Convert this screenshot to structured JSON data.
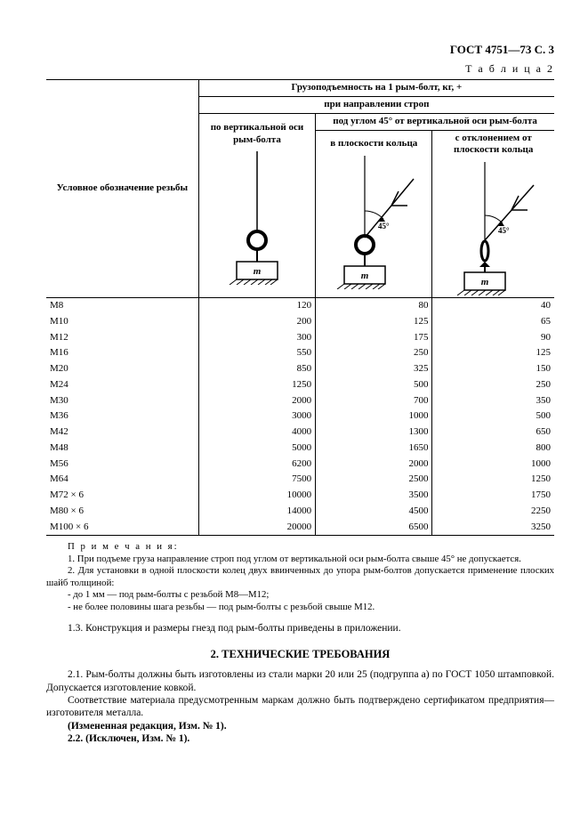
{
  "header": {
    "doc_id": "ГОСТ 4751—73 С. 3"
  },
  "table": {
    "caption": "Т а б л и ц а  2",
    "head": {
      "main": "Грузоподъемность на 1 рым-болт, кг, +",
      "sub": "при направлении строп",
      "col_thread": "Условное обозначение резьбы",
      "col_vert": "по вертикальной оси рым-болта",
      "angle_group": "под углом 45° от вертикальной оси рым-болта",
      "col_inplane": "в плоскости кольца",
      "col_offplane": "с отклонением от плоскости кольца"
    },
    "rows": [
      {
        "t": "М8",
        "v1": "120",
        "v2": "80",
        "v3": "40"
      },
      {
        "t": "М10",
        "v1": "200",
        "v2": "125",
        "v3": "65"
      },
      {
        "t": "М12",
        "v1": "300",
        "v2": "175",
        "v3": "90"
      },
      {
        "t": "М16",
        "v1": "550",
        "v2": "250",
        "v3": "125"
      },
      {
        "t": "М20",
        "v1": "850",
        "v2": "325",
        "v3": "150"
      },
      {
        "t": "М24",
        "v1": "1250",
        "v2": "500",
        "v3": "250"
      },
      {
        "t": "М30",
        "v1": "2000",
        "v2": "700",
        "v3": "350"
      },
      {
        "t": "М36",
        "v1": "3000",
        "v2": "1000",
        "v3": "500"
      },
      {
        "t": "М42",
        "v1": "4000",
        "v2": "1300",
        "v3": "650"
      },
      {
        "t": "М48",
        "v1": "5000",
        "v2": "1650",
        "v3": "800"
      },
      {
        "t": "М56",
        "v1": "6200",
        "v2": "2000",
        "v3": "1000"
      },
      {
        "t": "М64",
        "v1": "7500",
        "v2": "2500",
        "v3": "1250"
      },
      {
        "t": "М72 × 6",
        "v1": "10000",
        "v2": "3500",
        "v3": "1750"
      },
      {
        "t": "М80 × 6",
        "v1": "14000",
        "v2": "4500",
        "v3": "2250"
      },
      {
        "t": "М100 × 6",
        "v1": "20000",
        "v2": "6500",
        "v3": "3250"
      }
    ]
  },
  "notes": {
    "title": "П р и м е ч а н и я:",
    "n1": "1. При подъеме груза направление строп под углом от вертикальной оси рым-болта свыше 45° не допускается.",
    "n2": "2. Для установки в одной плоскости колец двух ввинченных до упора рым-болтов допускается применение плоских шайб толщиной:",
    "n2a": "- до 1 мм — под рым-болты с резьбой М8—М12;",
    "n2b": "- не более половины шага резьбы — под рым-болты с резьбой свыше М12."
  },
  "sec13": "1.3.  Конструкция и размеры гнезд под рым-болты приведены в приложении.",
  "sec2": {
    "title": "2.  ТЕХНИЧЕСКИЕ ТРЕБОВАНИЯ",
    "p1": "2.1. Рым-болты должны быть изготовлены из стали марки 20 или 25 (подгруппа а) по ГОСТ 1050 штамповкой. Допускается изготовление ковкой.",
    "p2": "Соответствие материала предусмотренным маркам должно быть подтверждено сертификатом предприятия—изготовителя металла.",
    "p3": "(Измененная редакция, Изм. № 1).",
    "p4": "2.2.  (Исключен, Изм. № 1)."
  },
  "diagrams": {
    "angle_label": "45°",
    "mass_label": "m"
  }
}
